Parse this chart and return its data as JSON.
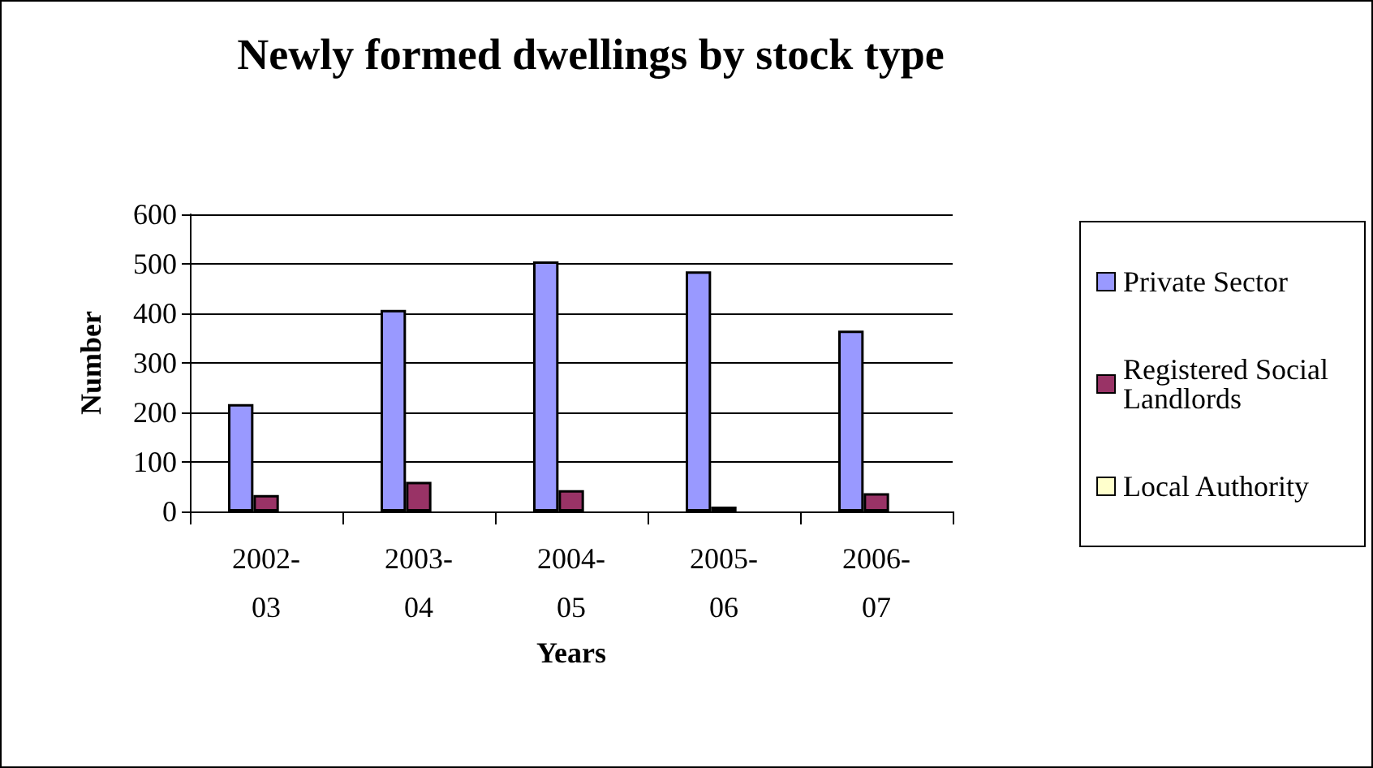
{
  "chart_data": {
    "type": "bar",
    "title": "Newly formed dwellings by stock type",
    "xlabel": "Years",
    "ylabel": "Number",
    "categories": [
      "2002-03",
      "2003-04",
      "2004-05",
      "2005-06",
      "2006-07"
    ],
    "series": [
      {
        "name": "Private Sector",
        "color": "#9999ff",
        "values": [
          217,
          407,
          505,
          485,
          365
        ]
      },
      {
        "name": "Registered Social Landlords",
        "color": "#993366",
        "values": [
          33,
          60,
          43,
          10,
          37
        ]
      },
      {
        "name": "Local Authority",
        "color": "#ffffcc",
        "values": [
          0,
          0,
          0,
          0,
          0
        ]
      }
    ],
    "ylim": [
      0,
      600
    ],
    "yticks": [
      0,
      100,
      200,
      300,
      400,
      500,
      600
    ],
    "grid": "y",
    "legend": "right"
  }
}
